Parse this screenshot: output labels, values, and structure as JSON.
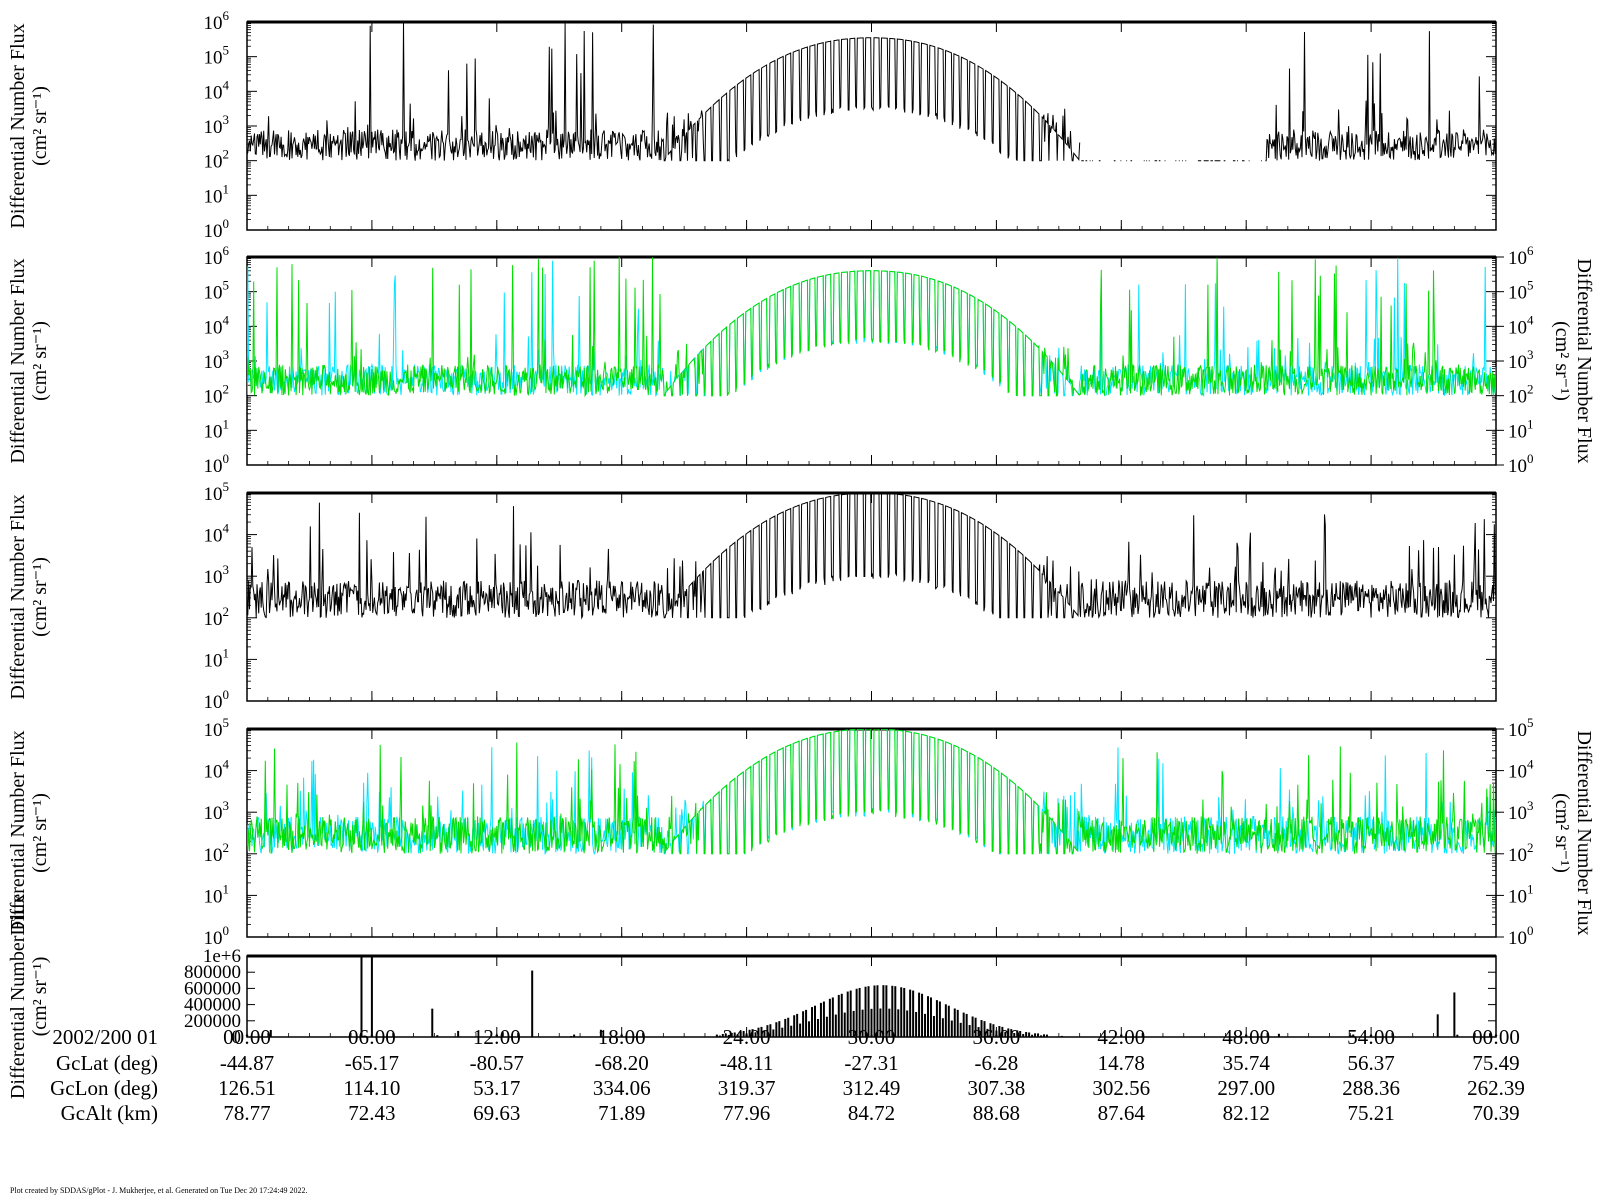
{
  "footer": "Plot created by SDDAS/gPlot - J. Mukherjee, et al.  Generated on Tue Dec 20 17:24:49 2022.",
  "colors": {
    "black": "#000000",
    "cyan": "#00e5ff",
    "green": "#00dd00"
  },
  "chart_data": [
    {
      "type": "line",
      "scale": "log",
      "ylim": [
        1,
        1000000
      ],
      "ylabel": "Differential Number Flux",
      "yunits": "(cm² sr⁻¹)",
      "right_axis": false,
      "xlim_hours": [
        0,
        60
      ],
      "series": [
        {
          "color": "black"
        }
      ],
      "features": {
        "baseline": 100,
        "peak_center_hour": 30,
        "peak": 350000,
        "spike_max": 1000000
      }
    },
    {
      "type": "line",
      "scale": "log",
      "ylim": [
        1,
        1000000
      ],
      "ylabel": "Differential Number Flux",
      "yunits": "(cm² sr⁻¹)",
      "right_axis": true,
      "xlim_hours": [
        0,
        60
      ],
      "series": [
        {
          "color": "cyan"
        },
        {
          "color": "green"
        }
      ],
      "features": {
        "baseline": 100,
        "peak_center_hour": 30,
        "peak": 400000,
        "spike_max": 1000000
      }
    },
    {
      "type": "line",
      "scale": "log",
      "ylim": [
        1,
        100000
      ],
      "ylabel": "Differential Number Flux",
      "yunits": "(cm² sr⁻¹)",
      "right_axis": false,
      "xlim_hours": [
        0,
        60
      ],
      "series": [
        {
          "color": "black"
        }
      ],
      "features": {
        "baseline": 100,
        "peak_center_hour": 30,
        "peak": 100000,
        "spike_max": 60000
      }
    },
    {
      "type": "line",
      "scale": "log",
      "ylim": [
        1,
        100000
      ],
      "ylabel": "Differential Number Flux",
      "yunits": "(cm² sr⁻¹)",
      "right_axis": true,
      "xlim_hours": [
        0,
        60
      ],
      "series": [
        {
          "color": "cyan"
        },
        {
          "color": "green"
        }
      ],
      "features": {
        "baseline": 100,
        "peak_center_hour": 30,
        "peak": 100000,
        "spike_max": 50000
      }
    },
    {
      "type": "bar",
      "scale": "linear",
      "ylim": [
        0,
        1000000
      ],
      "ylabel": "Differential Number Flux",
      "yunits": "(cm² sr⁻¹)",
      "right_axis": false,
      "xlim_hours": [
        0,
        60
      ],
      "ytick_labels": [
        "0",
        "200000",
        "400000",
        "600000",
        "800000",
        "1e+6"
      ],
      "series": [
        {
          "color": "black"
        }
      ],
      "features": {
        "peak_center_hour": 30.5,
        "peak": 640000
      }
    }
  ],
  "x_axis": {
    "ticks_hours": [
      0,
      6,
      12,
      18,
      24,
      30,
      36,
      42,
      48,
      54,
      60
    ],
    "rows": [
      {
        "label": "2002/200 01",
        "values": [
          "00:00",
          "06:00",
          "12:00",
          "18:00",
          "24:00",
          "30:00",
          "36:00",
          "42:00",
          "48:00",
          "54:00",
          "00:00"
        ]
      },
      {
        "label": "GcLat (deg)",
        "values": [
          "-44.87",
          "-65.17",
          "-80.57",
          "-68.20",
          "-48.11",
          "-27.31",
          "-6.28",
          "14.78",
          "35.74",
          "56.37",
          "75.49"
        ]
      },
      {
        "label": "GcLon (deg)",
        "values": [
          "126.51",
          "114.10",
          "53.17",
          "334.06",
          "319.37",
          "312.49",
          "307.38",
          "302.56",
          "297.00",
          "288.36",
          "262.39"
        ]
      },
      {
        "label": "GcAlt (km)",
        "values": [
          "78.77",
          "72.43",
          "69.63",
          "71.89",
          "77.96",
          "84.72",
          "88.68",
          "87.64",
          "82.12",
          "75.21",
          "70.39"
        ]
      }
    ]
  }
}
